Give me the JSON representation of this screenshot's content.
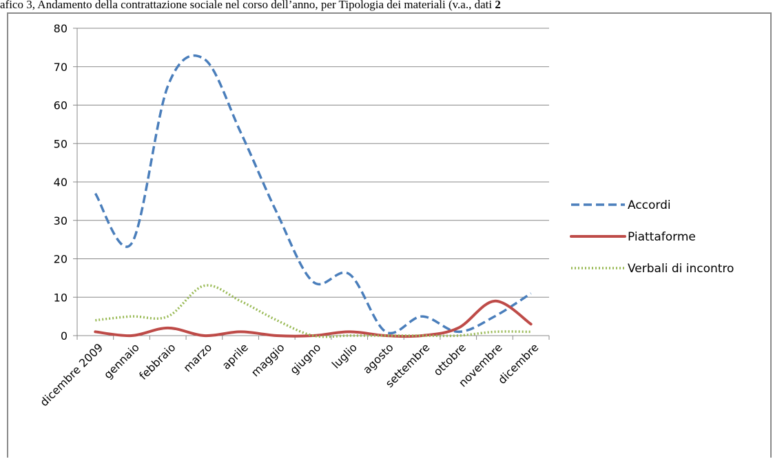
{
  "caption": {
    "text": "afico 3, Andamento della contrattazione sociale nel corso dell’anno, per Tipologia dei materiali (v.a., dati ",
    "year_bold": "2"
  },
  "chart_data": {
    "type": "line",
    "title": "",
    "xlabel": "",
    "ylabel": "",
    "categories": [
      "dicembre 2009",
      "gennaio",
      "febbraio",
      "marzo",
      "aprile",
      "maggio",
      "giugno",
      "luglio",
      "agosto",
      "settembre",
      "ottobre",
      "novembre",
      "dicembre"
    ],
    "ylim": [
      0,
      80
    ],
    "yticks": [
      0,
      10,
      20,
      30,
      40,
      50,
      60,
      70,
      80
    ],
    "grid": true,
    "smooth": true,
    "legend_position": "right",
    "series": [
      {
        "name": "Accordi",
        "color": "#4a7ebb",
        "dash": "dashed",
        "values": [
          37,
          24,
          65,
          72,
          53,
          32,
          14,
          16,
          1,
          5,
          1,
          5,
          11
        ]
      },
      {
        "name": "Piattaforme",
        "color": "#be4b48",
        "dash": "solid",
        "values": [
          1,
          0,
          2,
          0,
          1,
          0,
          0,
          1,
          0,
          0,
          2,
          9,
          3
        ]
      },
      {
        "name": "Verbali di incontro",
        "color": "#98b954",
        "dash": "dotted",
        "values": [
          4,
          5,
          5,
          13,
          9,
          4,
          0,
          0,
          0,
          0,
          0,
          1,
          1
        ]
      }
    ]
  }
}
